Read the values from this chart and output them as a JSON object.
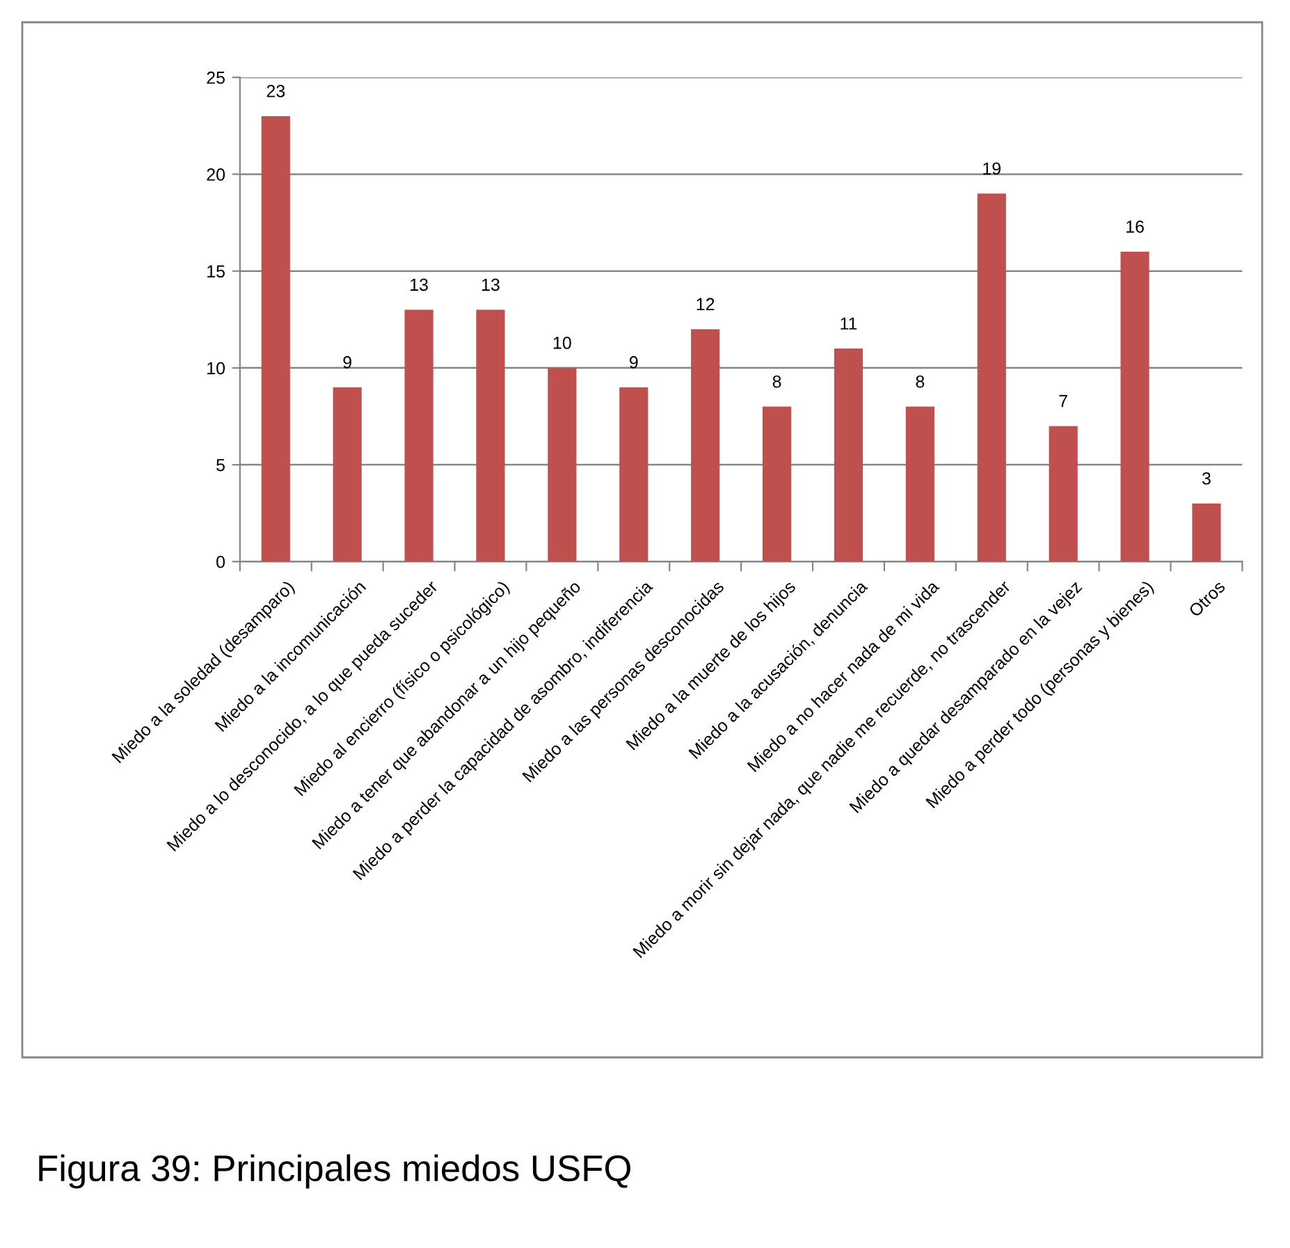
{
  "chart_data": {
    "type": "bar",
    "categories": [
      "Miedo a la soledad (desamparo)",
      "Miedo a la incomunicación",
      "Miedo a lo desconocido, a lo que pueda suceder",
      "Miedo al encierro (físico o psicológico)",
      "Miedo a tener que abandonar a un hijo pequeño",
      "Miedo a perder la capacidad de asombro, indiferencia",
      "Miedo a las personas desconocidas",
      "Miedo a la muerte de los hijos",
      "Miedo a la acusación, denuncia",
      "Miedo a no hacer nada de mi vida",
      "Miedo a morir sin dejar nada, que nadie me recuerde, no trascender",
      "Miedo a quedar desamparado en la vejez",
      "Miedo a perder todo (personas y bienes)",
      "Otros"
    ],
    "values": [
      23,
      9,
      13,
      13,
      10,
      9,
      12,
      8,
      11,
      8,
      19,
      7,
      16,
      3
    ],
    "color": "#c0504d",
    "ylim": [
      0,
      25
    ],
    "yticks": [
      0,
      5,
      10,
      15,
      20,
      25
    ],
    "grid": "y",
    "data_labels": true,
    "annotations": [
      "Figura 39: Principales miedos USFQ"
    ]
  }
}
